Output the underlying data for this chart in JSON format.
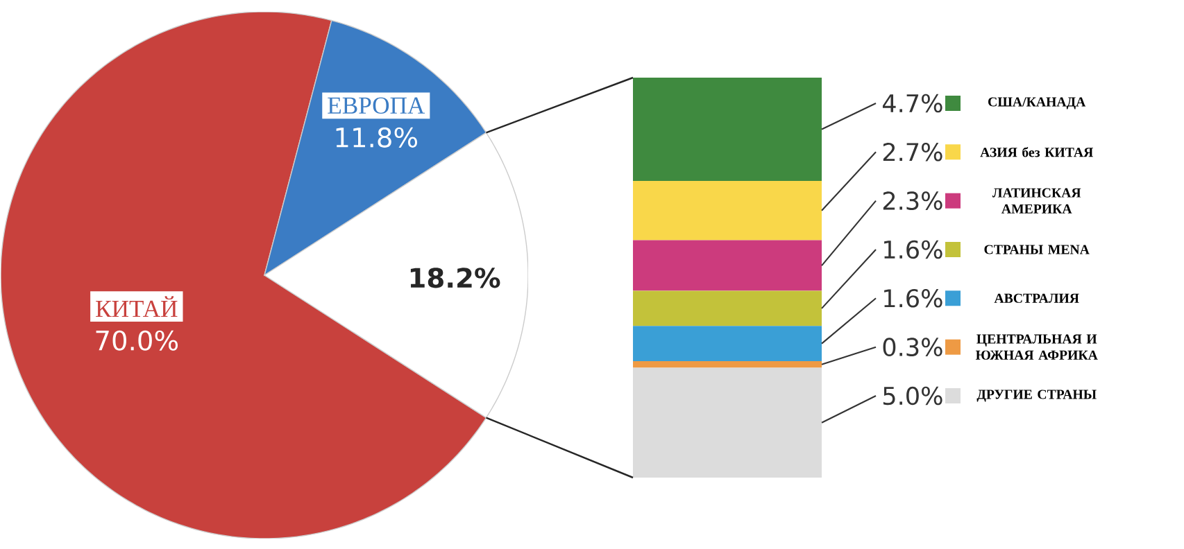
{
  "chart_data": [
    {
      "type": "pie",
      "categories": [
        "КИТАЙ",
        "ЕВРОПА",
        null
      ],
      "values": [
        70.0,
        11.8,
        18.2
      ],
      "colors": [
        "#c8413d",
        "#3b7cc4",
        "#ffffff"
      ],
      "value_labels": [
        "70.0%",
        "11.8%",
        "18.2%"
      ]
    },
    {
      "type": "bar",
      "stacked": true,
      "categories": [
        null
      ],
      "legend": "right",
      "series": [
        {
          "name": "ДРУГИЕ СТРАНЫ",
          "color": "#dcdcdc",
          "values": [
            5.0
          ],
          "value_labels": [
            "5.0%"
          ]
        },
        {
          "name": "ЦЕНТРАЛЬНАЯ И ЮЖНАЯ АФРИКА",
          "color": "#ee9a44",
          "values": [
            0.3
          ],
          "value_labels": [
            "0.3%"
          ]
        },
        {
          "name": "АВСТРАЛИЯ",
          "color": "#3a9fd6",
          "values": [
            1.6
          ],
          "value_labels": [
            "1.6%"
          ]
        },
        {
          "name": "СТРАНЫ MENA",
          "color": "#c3c23a",
          "values": [
            1.6
          ],
          "value_labels": [
            "1.6%"
          ]
        },
        {
          "name": "ЛАТИНСКАЯ АМЕРИКА",
          "color": "#cc3b7d",
          "values": [
            2.3
          ],
          "value_labels": [
            "2.3%"
          ]
        },
        {
          "name": "АЗИЯ без КИТАЯ",
          "color": "#f9d74a",
          "values": [
            2.7
          ],
          "value_labels": [
            "2.7%"
          ]
        },
        {
          "name": "США/КАНАДА",
          "color": "#3f8a3f",
          "values": [
            4.7
          ],
          "value_labels": [
            "4.7%"
          ]
        }
      ]
    }
  ]
}
